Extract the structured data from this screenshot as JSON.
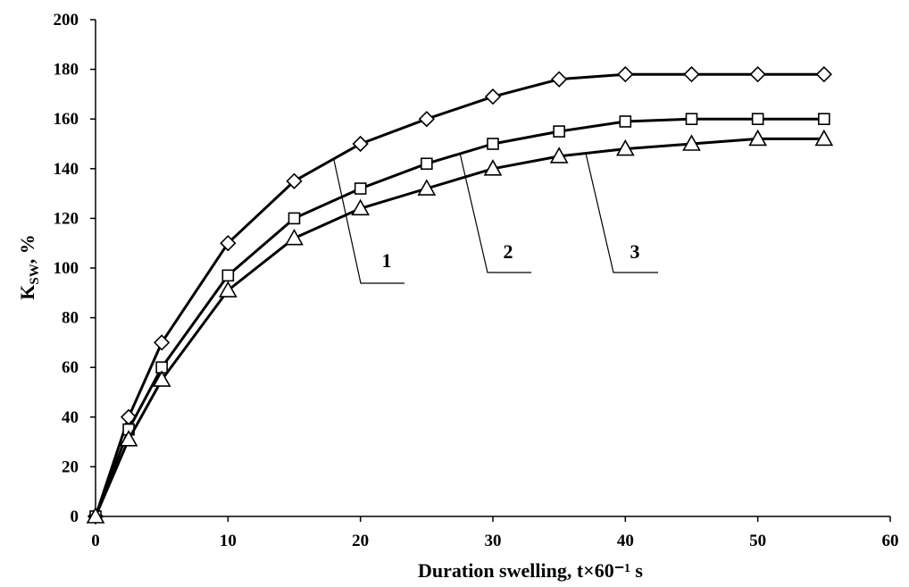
{
  "chart_data": {
    "type": "line",
    "xlabel": "Duration swelling, t×60⁻¹ s",
    "ylabel": "K",
    "ylabel_sub": "SW",
    "ylabel_unit": ", %",
    "xlim": [
      0,
      60
    ],
    "ylim": [
      0,
      200
    ],
    "xticks": [
      0,
      10,
      20,
      30,
      40,
      50,
      60
    ],
    "yticks": [
      0,
      20,
      40,
      60,
      80,
      100,
      120,
      140,
      160,
      180,
      200
    ],
    "grid": false,
    "x": [
      0,
      2.5,
      5,
      10,
      15,
      20,
      25,
      30,
      35,
      40,
      45,
      50,
      55
    ],
    "series": [
      {
        "name": "1",
        "marker": "diamond",
        "values": [
          0,
          40,
          70,
          110,
          135,
          150,
          160,
          169,
          176,
          178,
          178,
          178,
          178
        ]
      },
      {
        "name": "2",
        "marker": "square",
        "values": [
          0,
          35,
          60,
          97,
          120,
          132,
          142,
          150,
          155,
          159,
          160,
          160,
          160
        ]
      },
      {
        "name": "3",
        "marker": "triangle",
        "values": [
          0,
          31,
          55,
          91,
          112,
          124,
          132,
          140,
          145,
          148,
          150,
          152,
          152
        ]
      }
    ],
    "annotations": [
      "1",
      "2",
      "3"
    ]
  }
}
